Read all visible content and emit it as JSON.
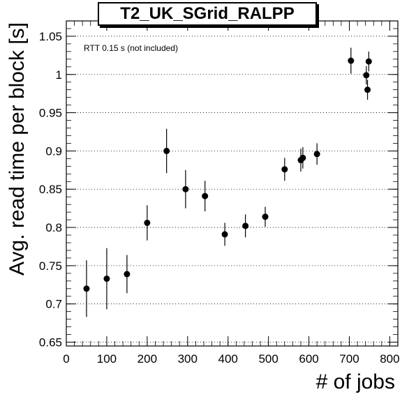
{
  "chart_data": {
    "type": "scatter",
    "title": "T2_UK_SGrid_RALPP",
    "xlabel": "# of jobs",
    "ylabel": "Avg. read time per block [s]",
    "annotation": "RTT 0.15 s (not included)",
    "xlim": [
      0,
      820
    ],
    "ylim": [
      0.645,
      1.07
    ],
    "xticks": [
      0,
      100,
      200,
      300,
      400,
      500,
      600,
      700,
      800
    ],
    "yticks": [
      0.65,
      0.7,
      0.75,
      0.8,
      0.85,
      0.9,
      0.95,
      1,
      1.05
    ],
    "xtick_labels": [
      "0",
      "100",
      "200",
      "300",
      "400",
      "500",
      "600",
      "700",
      "800"
    ],
    "ytick_labels": [
      "0.65",
      "0.7",
      "0.75",
      "0.8",
      "0.85",
      "0.9",
      "0.95",
      "1",
      "1.05"
    ],
    "grid": "horizontal dotted",
    "series": [
      {
        "points": [
          {
            "x": 50,
            "y": 0.72,
            "err": 0.037
          },
          {
            "x": 100,
            "y": 0.733,
            "err": 0.04
          },
          {
            "x": 150,
            "y": 0.739,
            "err": 0.025
          },
          {
            "x": 200,
            "y": 0.806,
            "err": 0.023
          },
          {
            "x": 248,
            "y": 0.9,
            "err": 0.029
          },
          {
            "x": 295,
            "y": 0.85,
            "err": 0.025
          },
          {
            "x": 343,
            "y": 0.841,
            "err": 0.02
          },
          {
            "x": 392,
            "y": 0.791,
            "err": 0.015
          },
          {
            "x": 443,
            "y": 0.802,
            "err": 0.015
          },
          {
            "x": 492,
            "y": 0.814,
            "err": 0.013
          },
          {
            "x": 540,
            "y": 0.876,
            "err": 0.015
          },
          {
            "x": 580,
            "y": 0.888,
            "err": 0.015
          },
          {
            "x": 585,
            "y": 0.891,
            "err": 0.014
          },
          {
            "x": 620,
            "y": 0.896,
            "err": 0.014
          },
          {
            "x": 704,
            "y": 1.018,
            "err": 0.017
          },
          {
            "x": 742,
            "y": 0.999,
            "err": 0.012
          },
          {
            "x": 745,
            "y": 0.98,
            "err": 0.013
          },
          {
            "x": 748,
            "y": 1.017,
            "err": 0.013
          }
        ]
      }
    ]
  }
}
